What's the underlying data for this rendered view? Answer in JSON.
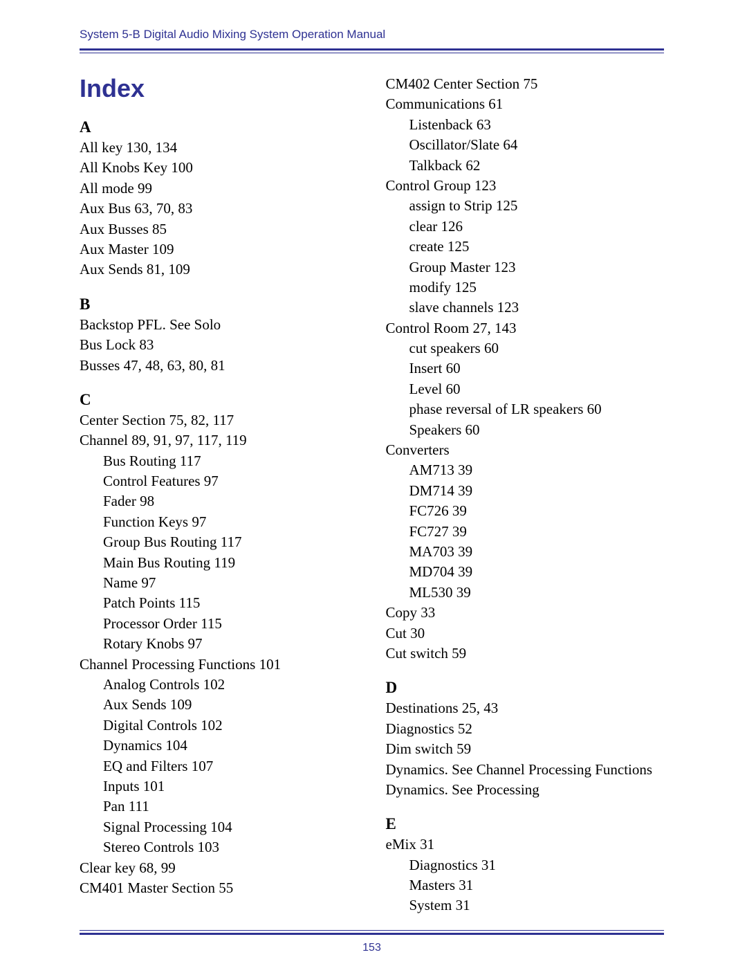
{
  "header": "System 5-B Digital Audio Mixing System Operation Manual",
  "title": "Index",
  "page_number": "153",
  "left_column": [
    {
      "type": "letter",
      "text": "A"
    },
    {
      "type": "entry",
      "level": 0,
      "text": "All key 130, 134"
    },
    {
      "type": "entry",
      "level": 0,
      "text": "All Knobs Key 100"
    },
    {
      "type": "entry",
      "level": 0,
      "text": "All mode 99"
    },
    {
      "type": "entry",
      "level": 0,
      "text": "Aux Bus 63, 70, 83"
    },
    {
      "type": "entry",
      "level": 0,
      "text": "Aux Busses 85"
    },
    {
      "type": "entry",
      "level": 0,
      "text": "Aux Master 109"
    },
    {
      "type": "entry",
      "level": 0,
      "text": "Aux Sends 81, 109"
    },
    {
      "type": "letter",
      "text": "B"
    },
    {
      "type": "entry",
      "level": 0,
      "text": "Backstop PFL. See Solo"
    },
    {
      "type": "entry",
      "level": 0,
      "text": "Bus Lock 83"
    },
    {
      "type": "entry",
      "level": 0,
      "text": "Busses 47, 48, 63, 80, 81"
    },
    {
      "type": "letter",
      "text": "C"
    },
    {
      "type": "entry",
      "level": 0,
      "text": "Center Section 75, 82, 117"
    },
    {
      "type": "entry",
      "level": 0,
      "text": "Channel 89, 91, 97, 117, 119"
    },
    {
      "type": "entry",
      "level": 1,
      "text": "Bus Routing 117"
    },
    {
      "type": "entry",
      "level": 1,
      "text": "Control Features 97"
    },
    {
      "type": "entry",
      "level": 1,
      "text": "Fader 98"
    },
    {
      "type": "entry",
      "level": 1,
      "text": "Function Keys 97"
    },
    {
      "type": "entry",
      "level": 1,
      "text": "Group Bus Routing 117"
    },
    {
      "type": "entry",
      "level": 1,
      "text": "Main Bus Routing 119"
    },
    {
      "type": "entry",
      "level": 1,
      "text": "Name 97"
    },
    {
      "type": "entry",
      "level": 1,
      "text": "Patch Points 115"
    },
    {
      "type": "entry",
      "level": 1,
      "text": "Processor Order 115"
    },
    {
      "type": "entry",
      "level": 1,
      "text": "Rotary Knobs 97"
    },
    {
      "type": "entry",
      "level": 0,
      "text": "Channel Processing Functions 101"
    },
    {
      "type": "entry",
      "level": 1,
      "text": "Analog Controls 102"
    },
    {
      "type": "entry",
      "level": 1,
      "text": "Aux Sends 109"
    },
    {
      "type": "entry",
      "level": 1,
      "text": "Digital Controls 102"
    },
    {
      "type": "entry",
      "level": 1,
      "text": "Dynamics 104"
    },
    {
      "type": "entry",
      "level": 1,
      "text": "EQ and Filters 107"
    },
    {
      "type": "entry",
      "level": 1,
      "text": "Inputs 101"
    },
    {
      "type": "entry",
      "level": 1,
      "text": "Pan 111"
    },
    {
      "type": "entry",
      "level": 1,
      "text": "Signal Processing 104"
    },
    {
      "type": "entry",
      "level": 1,
      "text": "Stereo Controls 103"
    },
    {
      "type": "entry",
      "level": 0,
      "text": "Clear key 68, 99"
    },
    {
      "type": "entry",
      "level": 0,
      "text": "CM401 Master Section 55"
    }
  ],
  "right_column": [
    {
      "type": "entry",
      "level": 0,
      "text": "CM402 Center Section 75"
    },
    {
      "type": "entry",
      "level": 0,
      "text": "Communications 61"
    },
    {
      "type": "entry",
      "level": 1,
      "text": "Listenback 63"
    },
    {
      "type": "entry",
      "level": 1,
      "text": "Oscillator/Slate 64"
    },
    {
      "type": "entry",
      "level": 1,
      "text": "Talkback 62"
    },
    {
      "type": "entry",
      "level": 0,
      "text": "Control Group 123"
    },
    {
      "type": "entry",
      "level": 1,
      "text": "assign to Strip 125"
    },
    {
      "type": "entry",
      "level": 1,
      "text": "clear 126"
    },
    {
      "type": "entry",
      "level": 1,
      "text": "create 125"
    },
    {
      "type": "entry",
      "level": 1,
      "text": "Group Master 123"
    },
    {
      "type": "entry",
      "level": 1,
      "text": "modify 125"
    },
    {
      "type": "entry",
      "level": 1,
      "text": "slave channels 123"
    },
    {
      "type": "entry",
      "level": 0,
      "text": "Control Room 27, 143"
    },
    {
      "type": "entry",
      "level": 1,
      "text": "cut speakers 60"
    },
    {
      "type": "entry",
      "level": 1,
      "text": "Insert 60"
    },
    {
      "type": "entry",
      "level": 1,
      "text": "Level 60"
    },
    {
      "type": "entry",
      "level": 1,
      "text": "phase reversal of LR speakers 60"
    },
    {
      "type": "entry",
      "level": 1,
      "text": "Speakers 60"
    },
    {
      "type": "entry",
      "level": 0,
      "text": "Converters"
    },
    {
      "type": "entry",
      "level": 1,
      "text": "AM713 39"
    },
    {
      "type": "entry",
      "level": 1,
      "text": "DM714 39"
    },
    {
      "type": "entry",
      "level": 1,
      "text": "FC726 39"
    },
    {
      "type": "entry",
      "level": 1,
      "text": "FC727 39"
    },
    {
      "type": "entry",
      "level": 1,
      "text": "MA703 39"
    },
    {
      "type": "entry",
      "level": 1,
      "text": "MD704 39"
    },
    {
      "type": "entry",
      "level": 1,
      "text": "ML530 39"
    },
    {
      "type": "entry",
      "level": 0,
      "text": "Copy 33"
    },
    {
      "type": "entry",
      "level": 0,
      "text": "Cut 30"
    },
    {
      "type": "entry",
      "level": 0,
      "text": "Cut switch 59"
    },
    {
      "type": "letter",
      "text": "D"
    },
    {
      "type": "entry",
      "level": 0,
      "text": "Destinations 25, 43"
    },
    {
      "type": "entry",
      "level": 0,
      "text": "Diagnostics 52"
    },
    {
      "type": "entry",
      "level": 0,
      "text": "Dim switch 59"
    },
    {
      "type": "entry",
      "level": 0,
      "text": "Dynamics. See Channel Processing Functions"
    },
    {
      "type": "entry",
      "level": 0,
      "text": "Dynamics. See Processing"
    },
    {
      "type": "letter",
      "text": "E"
    },
    {
      "type": "entry",
      "level": 0,
      "text": "eMix 31"
    },
    {
      "type": "entry",
      "level": 1,
      "text": "Diagnostics 31"
    },
    {
      "type": "entry",
      "level": 1,
      "text": "Masters 31"
    },
    {
      "type": "entry",
      "level": 1,
      "text": "System 31"
    }
  ]
}
